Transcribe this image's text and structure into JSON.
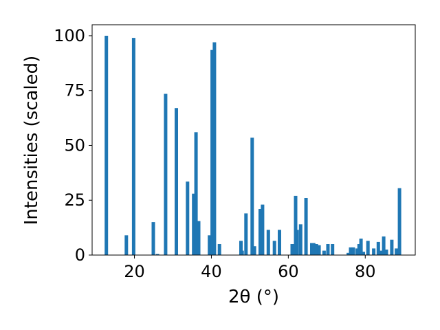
{
  "chart_data": {
    "type": "bar",
    "xlabel": "2θ (°)",
    "ylabel": "Intensities (scaled)",
    "xlim": [
      9,
      93
    ],
    "ylim": [
      0,
      105
    ],
    "xticks": [
      20,
      40,
      60,
      80
    ],
    "yticks": [
      0,
      25,
      50,
      75,
      100
    ],
    "grid": false,
    "bar_color": "#1f77b4",
    "series": [
      {
        "x": [
          12.7,
          17.9,
          19.8,
          24.9,
          26.0,
          28.1,
          30.9,
          33.8,
          35.4,
          36.0,
          36.7,
          39.5,
          40.2,
          40.8,
          42.1,
          47.7,
          48.0,
          49.0,
          50.6,
          51.2,
          52.7,
          53.3,
          54.8,
          56.4,
          57.7,
          61.0,
          61.9,
          62.3,
          63.2,
          64.6,
          66.1,
          66.6,
          67.3,
          68.0,
          69.3,
          70.3,
          71.5,
          75.6,
          76.2,
          76.9,
          77.9,
          78.4,
          78.9,
          79.5,
          80.7,
          82.2,
          83.4,
          84.0,
          84.8,
          85.5,
          86.9,
          88.1,
          88.9
        ],
        "values": [
          100,
          9,
          99,
          15,
          0.5,
          73.5,
          67,
          33.5,
          28,
          56,
          15.5,
          9,
          93.5,
          97,
          5,
          6.5,
          2,
          19,
          53.5,
          4,
          21,
          23,
          11.5,
          6.5,
          11.5,
          5,
          27,
          11.5,
          14,
          26,
          5.5,
          5.5,
          5,
          4.5,
          2,
          5,
          5,
          1,
          3.5,
          3.5,
          3,
          5,
          7.5,
          1.5,
          6.5,
          3,
          6,
          2,
          8.5,
          2.5,
          7,
          3,
          30.5
        ]
      }
    ]
  }
}
